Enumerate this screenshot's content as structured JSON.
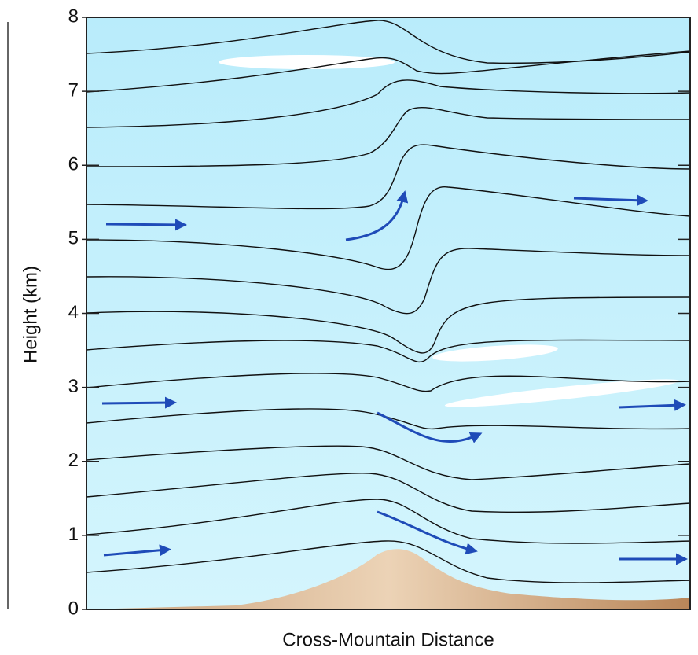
{
  "axes": {
    "y_label": "Height (km)",
    "y_ticks": [
      0,
      1,
      2,
      3,
      4,
      5,
      6,
      7,
      8
    ],
    "x_label": "Cross-Mountain Distance"
  }
}
